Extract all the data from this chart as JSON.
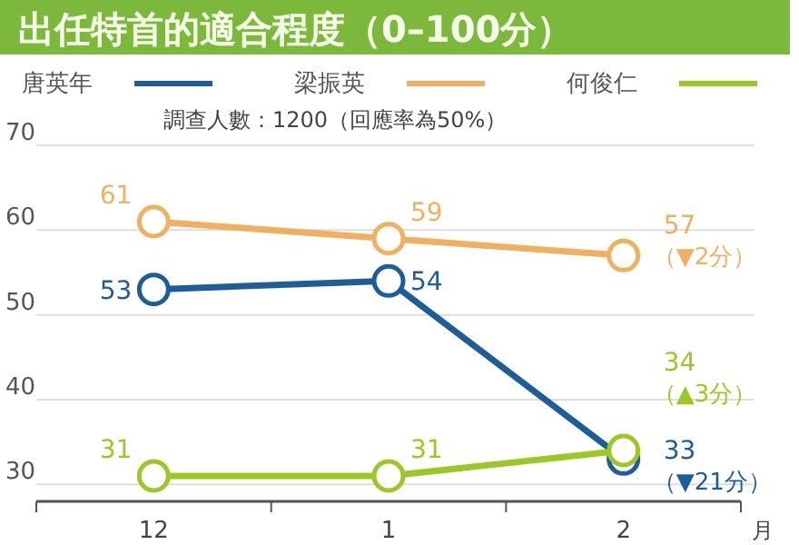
{
  "chart_data": {
    "type": "line",
    "title": "出任特首的適合程度（0–100分）",
    "subtitle": "調查人數：1200（回應率為50%）",
    "xlabel": "月",
    "categories": [
      "12",
      "1",
      "2"
    ],
    "series": [
      {
        "name": "唐英年",
        "color": "#1f5c9a",
        "values": [
          53,
          54,
          33
        ]
      },
      {
        "name": "梁振英",
        "color": "#f0b060",
        "values": [
          61,
          59,
          57
        ]
      },
      {
        "name": "何俊仁",
        "color": "#9cc826",
        "values": [
          31,
          31,
          34
        ]
      }
    ],
    "ylim": [
      28,
      70
    ],
    "yticks": [
      30,
      40,
      50,
      60,
      70
    ],
    "grid": "y",
    "legend": "top",
    "marker": "circle",
    "line_style": "solid",
    "data_labels": true,
    "annotations": [
      {
        "text": "（▼2分）",
        "x": "2",
        "y": 57
      },
      {
        "text": "（▲3分）",
        "x": "2",
        "y": 34
      },
      {
        "text": "（▼21分）",
        "x": "2",
        "y": 33
      }
    ]
  }
}
